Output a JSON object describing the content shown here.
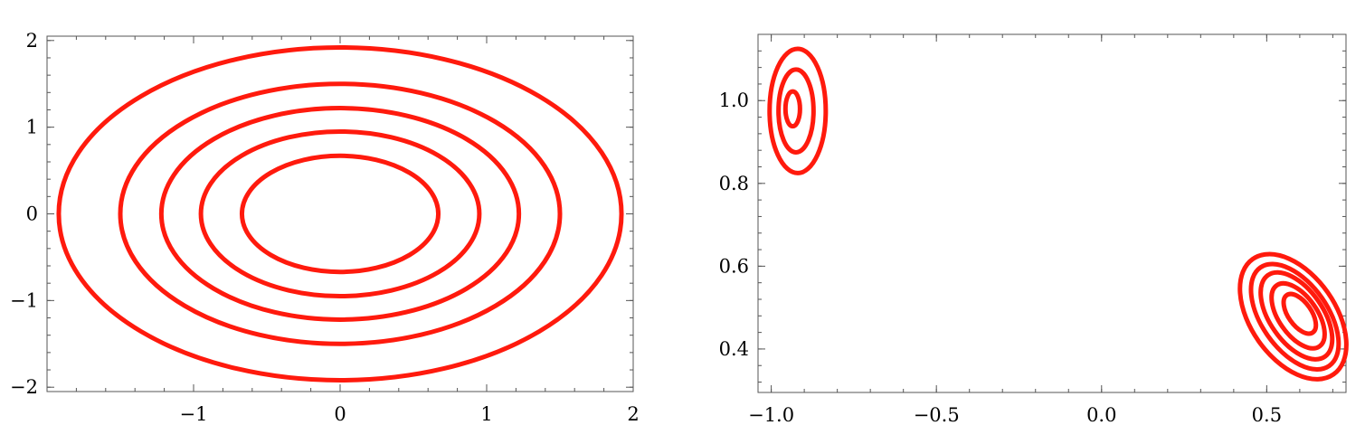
{
  "chart_data": [
    {
      "type": "contour",
      "title": "",
      "xlabel": "",
      "ylabel": "",
      "xlim": [
        -2,
        2
      ],
      "ylim": [
        -2.05,
        2.05
      ],
      "x_ticks": [
        -1,
        0,
        1,
        2
      ],
      "x_tick_labels": [
        "−1",
        "0",
        "1",
        "2"
      ],
      "y_ticks": [
        -2,
        -1,
        0,
        1,
        2
      ],
      "y_tick_labels": [
        "−2",
        "−1",
        "0",
        "1",
        "2"
      ],
      "grid": false,
      "line_color": "#ff1a0d",
      "contours": [
        {
          "cx": 0,
          "cy": 0,
          "rx": 0.67,
          "ry": 0.67,
          "angle": 0
        },
        {
          "cx": 0,
          "cy": 0,
          "rx": 0.95,
          "ry": 0.95,
          "angle": 0
        },
        {
          "cx": 0,
          "cy": 0,
          "rx": 1.22,
          "ry": 1.22,
          "angle": 0
        },
        {
          "cx": 0,
          "cy": 0,
          "rx": 1.5,
          "ry": 1.5,
          "angle": 0
        },
        {
          "cx": 0,
          "cy": 0,
          "rx": 1.92,
          "ry": 1.92,
          "angle": 0
        }
      ]
    },
    {
      "type": "contour",
      "title": "",
      "xlabel": "",
      "ylabel": "",
      "xlim": [
        -1.04,
        0.74
      ],
      "ylim": [
        0.295,
        1.16
      ],
      "x_ticks": [
        -1.0,
        -0.5,
        0.0,
        0.5
      ],
      "x_tick_labels": [
        "−1.0",
        "−0.5",
        "0.0",
        "0.5"
      ],
      "y_ticks": [
        0.4,
        0.6,
        0.8,
        1.0
      ],
      "y_tick_labels": [
        "0.4",
        "0.6",
        "0.8",
        "1.0"
      ],
      "grid": false,
      "line_color": "#ff1a0d",
      "contours": [
        {
          "cx": -0.935,
          "cy": 0.98,
          "rx": 0.022,
          "ry": 0.042,
          "angle": 0
        },
        {
          "cx": -0.925,
          "cy": 0.975,
          "rx": 0.053,
          "ry": 0.1,
          "angle": 0
        },
        {
          "cx": -0.92,
          "cy": 0.975,
          "rx": 0.085,
          "ry": 0.15,
          "angle": 0
        },
        {
          "cx": 0.6,
          "cy": 0.485,
          "rx": 0.035,
          "ry": 0.055,
          "angle": 35
        },
        {
          "cx": 0.595,
          "cy": 0.48,
          "rx": 0.058,
          "ry": 0.09,
          "angle": 35
        },
        {
          "cx": 0.59,
          "cy": 0.48,
          "rx": 0.08,
          "ry": 0.12,
          "angle": 35
        },
        {
          "cx": 0.585,
          "cy": 0.478,
          "rx": 0.1,
          "ry": 0.145,
          "angle": 35
        },
        {
          "cx": 0.58,
          "cy": 0.478,
          "rx": 0.128,
          "ry": 0.17,
          "angle": 35
        }
      ]
    }
  ]
}
